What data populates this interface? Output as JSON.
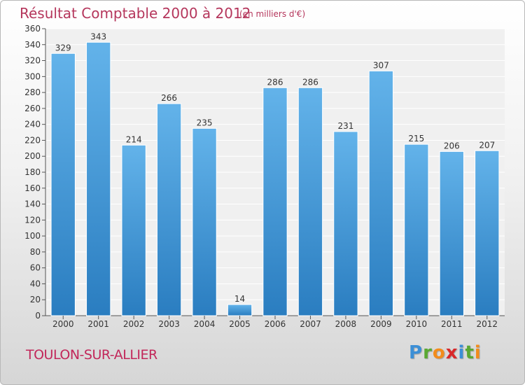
{
  "title": "Résultat Comptable 2000 à 2012",
  "subtitle": "(en milliers d'€)",
  "commune": "TOULON-SUR-ALLIER",
  "logo": {
    "letters": [
      "P",
      "r",
      "o",
      "x",
      "i",
      "t",
      "i"
    ],
    "colors": [
      "#3c8fd6",
      "#5aa832",
      "#f28c1c",
      "#d8282a",
      "#3c8fd6",
      "#5aa832",
      "#f28c1c"
    ]
  },
  "colors": {
    "bar_top": "#63b3ea",
    "bar_bottom": "#2a7dc0",
    "title": "#b5365c",
    "plot_bg": "#f0f0f0"
  },
  "chart_data": {
    "type": "bar",
    "title": "Résultat Comptable 2000 à 2012",
    "subtitle": "(en milliers d'€)",
    "categories": [
      "2000",
      "2001",
      "2002",
      "2003",
      "2004",
      "2005",
      "2006",
      "2007",
      "2008",
      "2009",
      "2010",
      "2011",
      "2012"
    ],
    "values": [
      329,
      343,
      214,
      266,
      235,
      14,
      286,
      286,
      231,
      307,
      215,
      206,
      207
    ],
    "ylim": [
      0,
      360
    ],
    "yticks": [
      0,
      20,
      40,
      60,
      80,
      100,
      120,
      140,
      160,
      180,
      200,
      220,
      240,
      260,
      280,
      300,
      320,
      340,
      360
    ],
    "grid": true,
    "xlabel": "",
    "ylabel": ""
  }
}
